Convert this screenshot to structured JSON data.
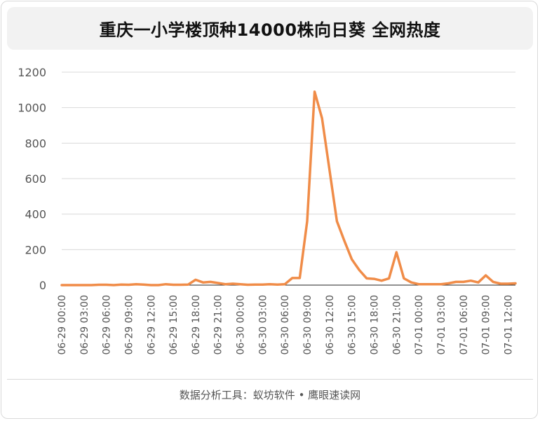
{
  "title": "重庆一小学楼顶种14000株向日葵 全网热度",
  "footer": "数据分析工具：蚁坊软件 • 鹰眼速读网",
  "chart_data": {
    "type": "line",
    "title": "重庆一小学楼顶种14000株向日葵 全网热度",
    "xlabel": "",
    "ylabel": "",
    "ylim": [
      0,
      1200
    ],
    "yticks": [
      0,
      200,
      400,
      600,
      800,
      1000,
      1200
    ],
    "grid": true,
    "legend": "none",
    "line_color": "#f08c48",
    "x": [
      "06-29 00:00",
      "06-29 01:00",
      "06-29 02:00",
      "06-29 03:00",
      "06-29 04:00",
      "06-29 05:00",
      "06-29 06:00",
      "06-29 07:00",
      "06-29 08:00",
      "06-29 09:00",
      "06-29 10:00",
      "06-29 11:00",
      "06-29 12:00",
      "06-29 13:00",
      "06-29 14:00",
      "06-29 15:00",
      "06-29 16:00",
      "06-29 17:00",
      "06-29 18:00",
      "06-29 19:00",
      "06-29 20:00",
      "06-29 21:00",
      "06-29 22:00",
      "06-29 23:00",
      "06-30 00:00",
      "06-30 01:00",
      "06-30 02:00",
      "06-30 03:00",
      "06-30 04:00",
      "06-30 05:00",
      "06-30 06:00",
      "06-30 07:00",
      "06-30 08:00",
      "06-30 09:00",
      "06-30 10:00",
      "06-30 11:00",
      "06-30 12:00",
      "06-30 13:00",
      "06-30 14:00",
      "06-30 15:00",
      "06-30 16:00",
      "06-30 17:00",
      "06-30 18:00",
      "06-30 19:00",
      "06-30 20:00",
      "06-30 21:00",
      "06-30 22:00",
      "06-30 23:00",
      "07-01 00:00",
      "07-01 01:00",
      "07-01 02:00",
      "07-01 03:00",
      "07-01 04:00",
      "07-01 05:00",
      "07-01 06:00",
      "07-01 07:00",
      "07-01 08:00",
      "07-01 09:00",
      "07-01 10:00",
      "07-01 11:00",
      "07-01 12:00",
      "07-01 13:00"
    ],
    "xtick_labels": [
      "06-29 00:00",
      "06-29 03:00",
      "06-29 06:00",
      "06-29 09:00",
      "06-29 12:00",
      "06-29 15:00",
      "06-29 18:00",
      "06-29 21:00",
      "06-30 00:00",
      "06-30 03:00",
      "06-30 06:00",
      "06-30 09:00",
      "06-30 12:00",
      "06-30 15:00",
      "06-30 18:00",
      "06-30 21:00",
      "07-01 00:00",
      "07-01 03:00",
      "07-01 06:00",
      "07-01 09:00",
      "07-01 12:00"
    ],
    "series": [
      {
        "values": [
          0,
          0,
          0,
          0,
          0,
          2,
          2,
          0,
          3,
          2,
          5,
          3,
          0,
          0,
          5,
          2,
          2,
          3,
          30,
          15,
          18,
          12,
          5,
          8,
          5,
          2,
          3,
          3,
          5,
          3,
          5,
          40,
          40,
          360,
          1090,
          940,
          650,
          360,
          250,
          145,
          85,
          38,
          35,
          25,
          38,
          185,
          38,
          15,
          5,
          5,
          5,
          5,
          10,
          18,
          18,
          25,
          15,
          55,
          18,
          8,
          8,
          10
        ]
      }
    ]
  }
}
